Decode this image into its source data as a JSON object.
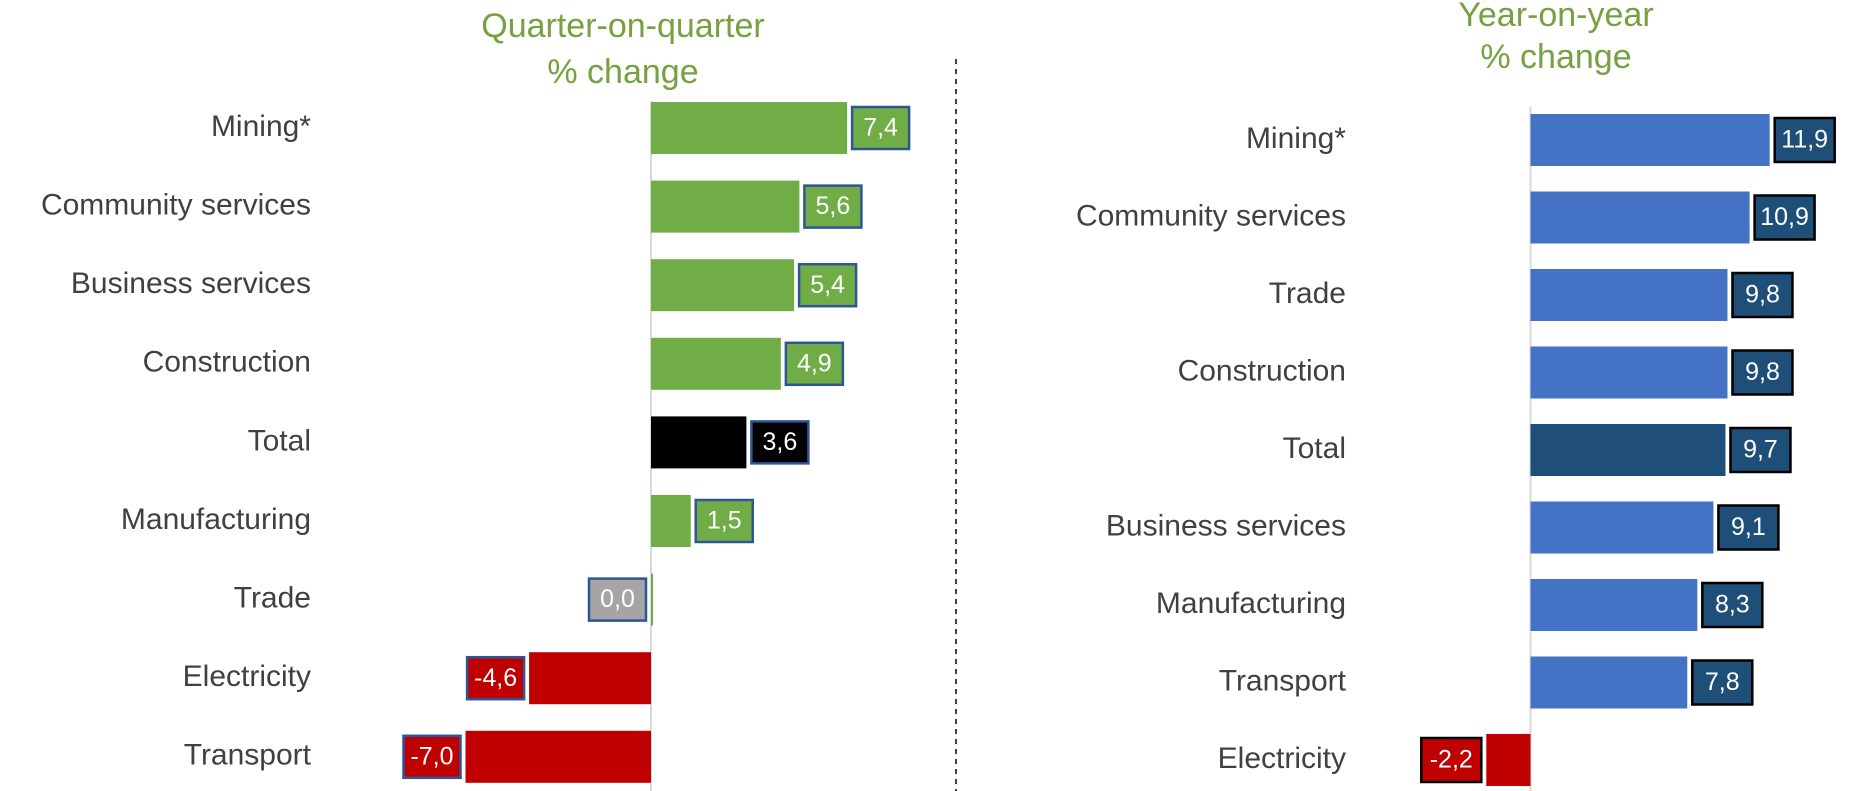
{
  "chart_data": [
    {
      "type": "bar",
      "orientation": "horizontal",
      "title": [
        "Quarter-on-quarter",
        "% change"
      ],
      "categories": [
        "Mining*",
        "Community services",
        "Business services",
        "Construction",
        "Total",
        "Manufacturing",
        "Trade",
        "Electricity",
        "Transport"
      ],
      "values": [
        7.4,
        5.6,
        5.4,
        4.9,
        3.6,
        1.5,
        0.0,
        -4.6,
        -7.0
      ],
      "value_labels": [
        "7,4",
        "5,6",
        "5,4",
        "4,9",
        "3,6",
        "1,5",
        "0,0",
        "-4,6",
        "-7,0"
      ],
      "colors": [
        "#70ad47",
        "#70ad47",
        "#70ad47",
        "#70ad47",
        "#000000",
        "#70ad47",
        "#70ad47",
        "#c00000",
        "#c00000"
      ],
      "label_colors": [
        "#70ad47",
        "#70ad47",
        "#70ad47",
        "#70ad47",
        "#000000",
        "#70ad47",
        "#a5a5a5",
        "#c00000",
        "#c00000"
      ],
      "label_border": "#2f5597",
      "title_color": "#77a040",
      "xlim": [
        -10,
        10
      ]
    },
    {
      "type": "bar",
      "orientation": "horizontal",
      "title": [
        "Year-on-year",
        "% change"
      ],
      "categories": [
        "Mining*",
        "Community services",
        "Trade",
        "Construction",
        "Total",
        "Business services",
        "Manufacturing",
        "Transport",
        "Electricity"
      ],
      "values": [
        11.9,
        10.9,
        9.8,
        9.8,
        9.7,
        9.1,
        8.3,
        7.8,
        -2.2
      ],
      "value_labels": [
        "11,9",
        "10,9",
        "9,8",
        "9,8",
        "9,7",
        "9,1",
        "8,3",
        "7,8",
        "-2,2"
      ],
      "colors": [
        "#4472c4",
        "#4472c4",
        "#4472c4",
        "#4472c4",
        "#1f4e79",
        "#4472c4",
        "#4472c4",
        "#4472c4",
        "#c00000"
      ],
      "label_colors": [
        "#1f4e79",
        "#1f4e79",
        "#1f4e79",
        "#1f4e79",
        "#1f4e79",
        "#1f4e79",
        "#1f4e79",
        "#1f4e79",
        "#c00000"
      ],
      "label_border": "#000000",
      "title_color": "#77a040",
      "xlim": [
        -5,
        15
      ]
    }
  ]
}
